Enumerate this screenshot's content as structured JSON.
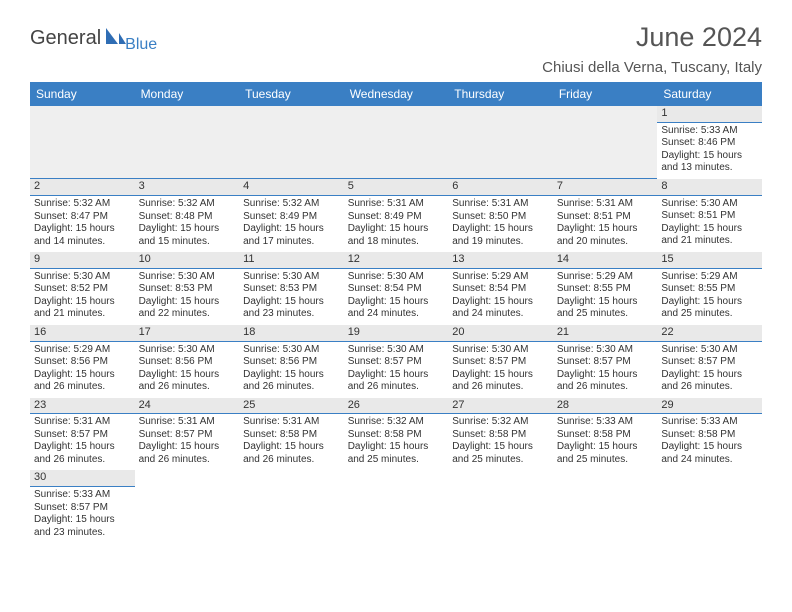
{
  "logo": {
    "text1": "General",
    "text2": "Blue"
  },
  "title": "June 2024",
  "location": "Chiusi della Verna, Tuscany, Italy",
  "colors": {
    "header_bg": "#3a7fc4",
    "header_text": "#ffffff",
    "daynum_bg": "#e9e9e9",
    "daynum_border": "#3a7fc4",
    "body_text": "#333333",
    "title_text": "#555555"
  },
  "dayHeaders": [
    "Sunday",
    "Monday",
    "Tuesday",
    "Wednesday",
    "Thursday",
    "Friday",
    "Saturday"
  ],
  "firstWeekday": 6,
  "daysInMonth": 30,
  "days": {
    "1": {
      "sunrise": "5:33 AM",
      "sunset": "8:46 PM",
      "daylight": "15 hours and 13 minutes."
    },
    "2": {
      "sunrise": "5:32 AM",
      "sunset": "8:47 PM",
      "daylight": "15 hours and 14 minutes."
    },
    "3": {
      "sunrise": "5:32 AM",
      "sunset": "8:48 PM",
      "daylight": "15 hours and 15 minutes."
    },
    "4": {
      "sunrise": "5:32 AM",
      "sunset": "8:49 PM",
      "daylight": "15 hours and 17 minutes."
    },
    "5": {
      "sunrise": "5:31 AM",
      "sunset": "8:49 PM",
      "daylight": "15 hours and 18 minutes."
    },
    "6": {
      "sunrise": "5:31 AM",
      "sunset": "8:50 PM",
      "daylight": "15 hours and 19 minutes."
    },
    "7": {
      "sunrise": "5:31 AM",
      "sunset": "8:51 PM",
      "daylight": "15 hours and 20 minutes."
    },
    "8": {
      "sunrise": "5:30 AM",
      "sunset": "8:51 PM",
      "daylight": "15 hours and 21 minutes."
    },
    "9": {
      "sunrise": "5:30 AM",
      "sunset": "8:52 PM",
      "daylight": "15 hours and 21 minutes."
    },
    "10": {
      "sunrise": "5:30 AM",
      "sunset": "8:53 PM",
      "daylight": "15 hours and 22 minutes."
    },
    "11": {
      "sunrise": "5:30 AM",
      "sunset": "8:53 PM",
      "daylight": "15 hours and 23 minutes."
    },
    "12": {
      "sunrise": "5:30 AM",
      "sunset": "8:54 PM",
      "daylight": "15 hours and 24 minutes."
    },
    "13": {
      "sunrise": "5:29 AM",
      "sunset": "8:54 PM",
      "daylight": "15 hours and 24 minutes."
    },
    "14": {
      "sunrise": "5:29 AM",
      "sunset": "8:55 PM",
      "daylight": "15 hours and 25 minutes."
    },
    "15": {
      "sunrise": "5:29 AM",
      "sunset": "8:55 PM",
      "daylight": "15 hours and 25 minutes."
    },
    "16": {
      "sunrise": "5:29 AM",
      "sunset": "8:56 PM",
      "daylight": "15 hours and 26 minutes."
    },
    "17": {
      "sunrise": "5:30 AM",
      "sunset": "8:56 PM",
      "daylight": "15 hours and 26 minutes."
    },
    "18": {
      "sunrise": "5:30 AM",
      "sunset": "8:56 PM",
      "daylight": "15 hours and 26 minutes."
    },
    "19": {
      "sunrise": "5:30 AM",
      "sunset": "8:57 PM",
      "daylight": "15 hours and 26 minutes."
    },
    "20": {
      "sunrise": "5:30 AM",
      "sunset": "8:57 PM",
      "daylight": "15 hours and 26 minutes."
    },
    "21": {
      "sunrise": "5:30 AM",
      "sunset": "8:57 PM",
      "daylight": "15 hours and 26 minutes."
    },
    "22": {
      "sunrise": "5:30 AM",
      "sunset": "8:57 PM",
      "daylight": "15 hours and 26 minutes."
    },
    "23": {
      "sunrise": "5:31 AM",
      "sunset": "8:57 PM",
      "daylight": "15 hours and 26 minutes."
    },
    "24": {
      "sunrise": "5:31 AM",
      "sunset": "8:57 PM",
      "daylight": "15 hours and 26 minutes."
    },
    "25": {
      "sunrise": "5:31 AM",
      "sunset": "8:58 PM",
      "daylight": "15 hours and 26 minutes."
    },
    "26": {
      "sunrise": "5:32 AM",
      "sunset": "8:58 PM",
      "daylight": "15 hours and 25 minutes."
    },
    "27": {
      "sunrise": "5:32 AM",
      "sunset": "8:58 PM",
      "daylight": "15 hours and 25 minutes."
    },
    "28": {
      "sunrise": "5:33 AM",
      "sunset": "8:58 PM",
      "daylight": "15 hours and 25 minutes."
    },
    "29": {
      "sunrise": "5:33 AM",
      "sunset": "8:58 PM",
      "daylight": "15 hours and 24 minutes."
    },
    "30": {
      "sunrise": "5:33 AM",
      "sunset": "8:57 PM",
      "daylight": "15 hours and 23 minutes."
    }
  },
  "labels": {
    "sunrise": "Sunrise:",
    "sunset": "Sunset:",
    "daylight": "Daylight:"
  }
}
